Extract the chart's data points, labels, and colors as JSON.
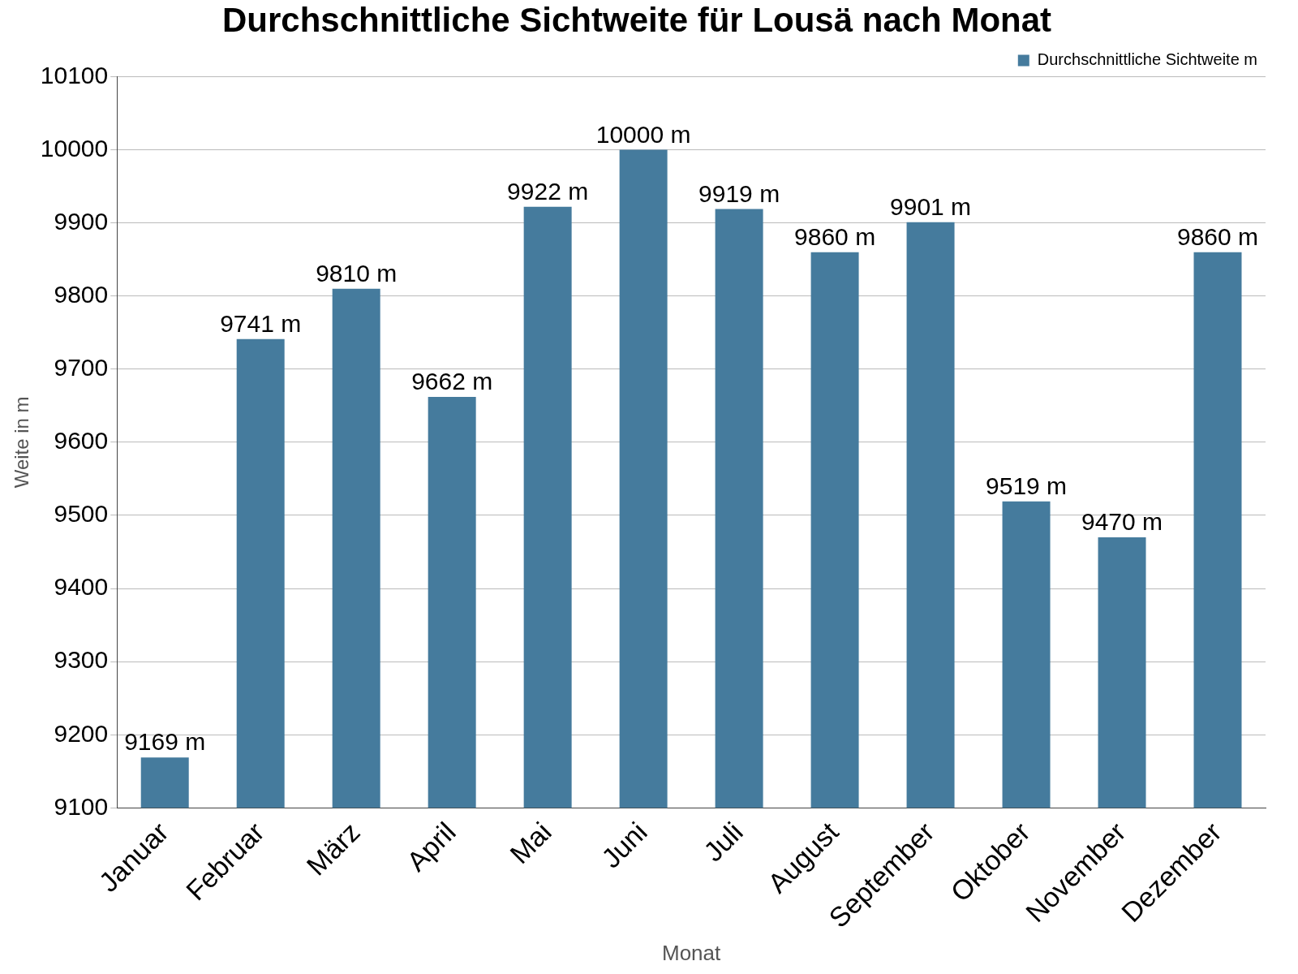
{
  "chart_data": {
    "type": "bar",
    "title": "Durchschnittliche Sichtweite für Lousä nach Monat",
    "xlabel": "Monat",
    "ylabel": "Weite in m",
    "categories": [
      "Januar",
      "Februar",
      "März",
      "April",
      "Mai",
      "Juni",
      "Juli",
      "August",
      "September",
      "Oktober",
      "November",
      "Dezember"
    ],
    "series": [
      {
        "name": "Durchschnittliche Sichtweite m",
        "color": "#457b9d",
        "values": [
          9169,
          9741,
          9810,
          9662,
          9922,
          10000,
          9919,
          9860,
          9901,
          9519,
          9470,
          9860
        ],
        "value_labels": [
          "9169 m",
          "9741 m",
          "9810 m",
          "9662 m",
          "9922 m",
          "10000 m",
          "9919 m",
          "9860 m",
          "9901 m",
          "9519 m",
          "9470 m",
          "9860 m"
        ]
      }
    ],
    "ylim": [
      9100,
      10100
    ],
    "yticks": [
      9100,
      9200,
      9300,
      9400,
      9500,
      9600,
      9700,
      9800,
      9900,
      10000,
      10100
    ],
    "grid": "y",
    "legend": "top right"
  }
}
